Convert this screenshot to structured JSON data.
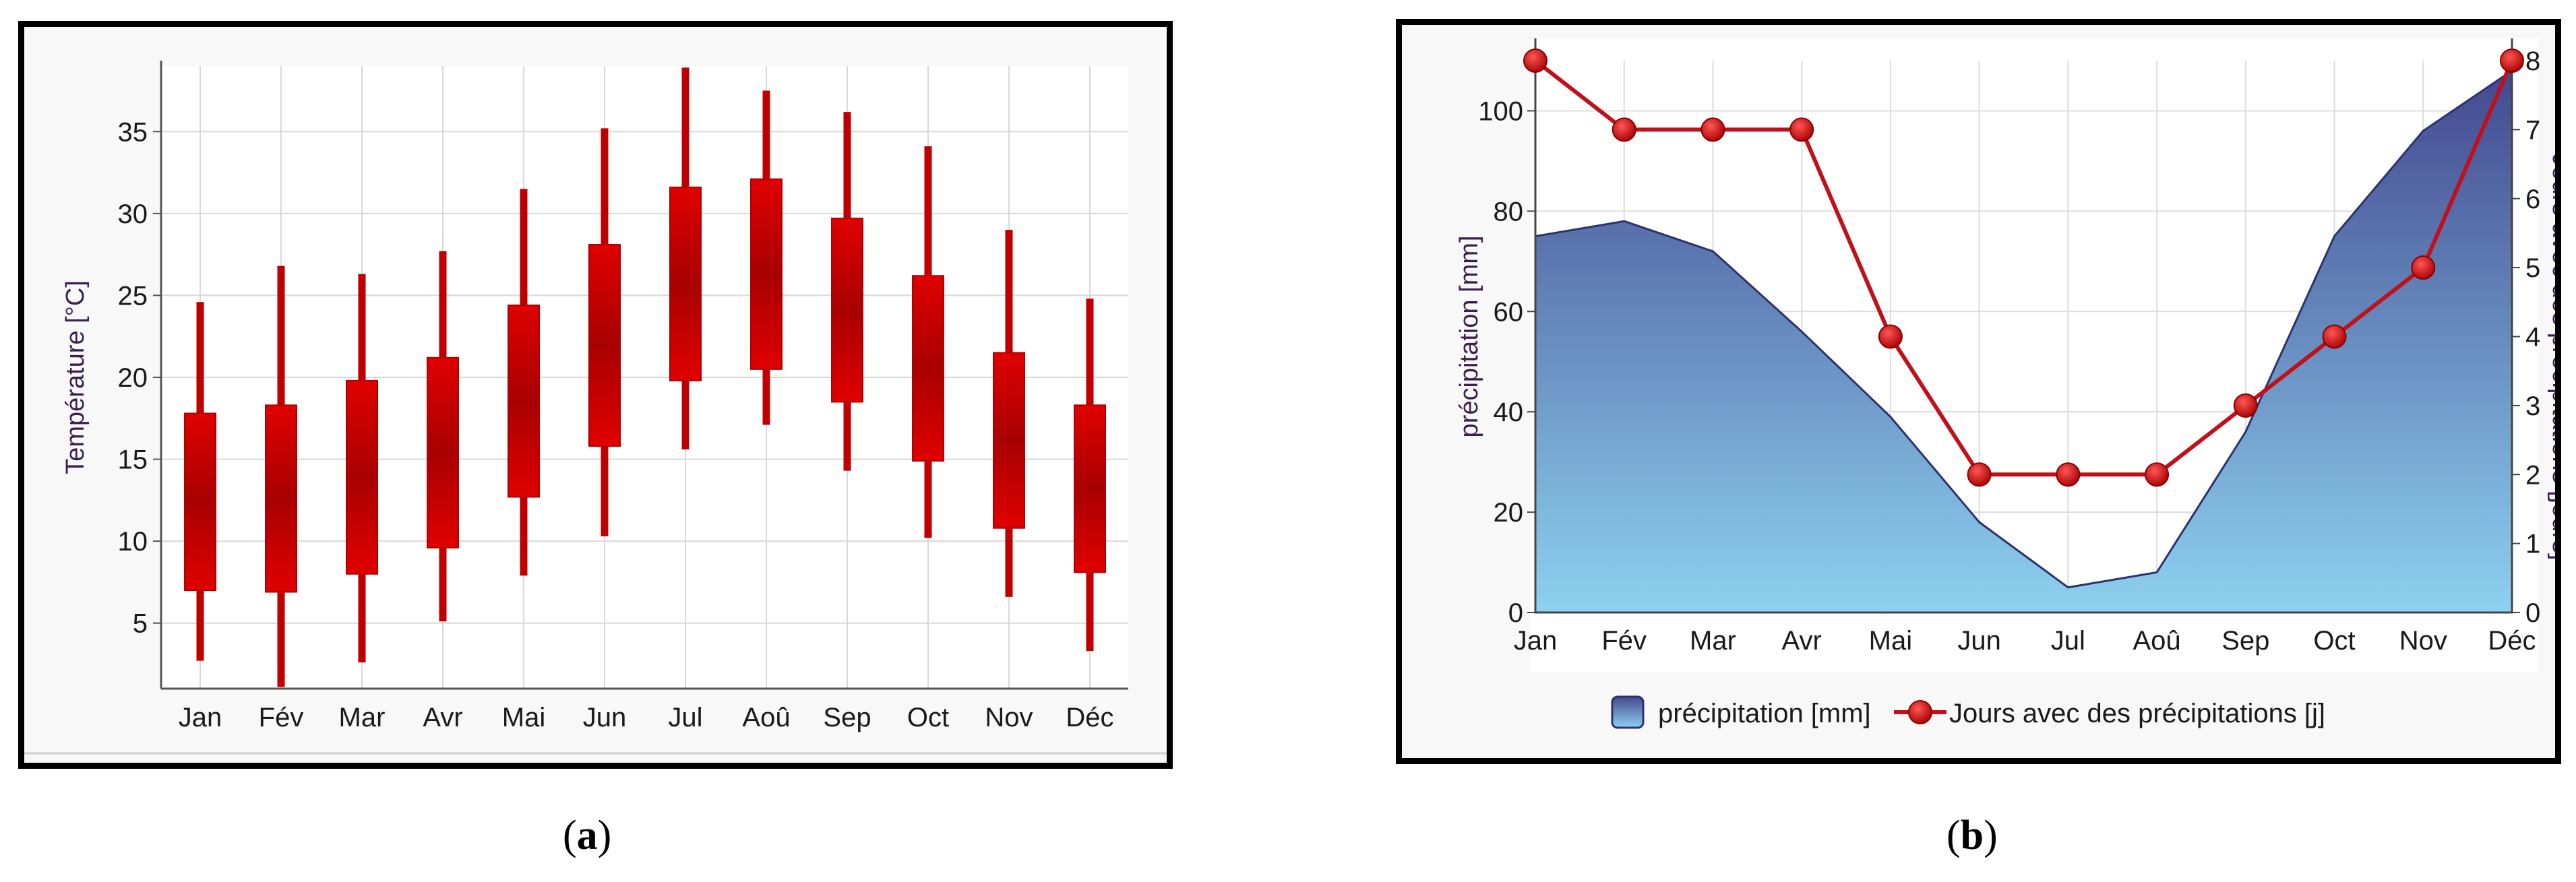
{
  "chart_data": [
    {
      "id": "a",
      "type": "candlestick",
      "title": "",
      "xlabel": "",
      "ylabel": "Température [°C]",
      "ylim": [
        1,
        39
      ],
      "yticks": [
        5,
        10,
        15,
        20,
        25,
        30,
        35
      ],
      "categories": [
        "Jan",
        "Fév",
        "Mar",
        "Avr",
        "Mai",
        "Jun",
        "Jul",
        "Aoû",
        "Sep",
        "Oct",
        "Nov",
        "Déc"
      ],
      "high": [
        24.6,
        26.8,
        26.3,
        27.7,
        31.5,
        35.2,
        38.9,
        37.5,
        36.2,
        34.1,
        29.0,
        24.8
      ],
      "open": [
        17.8,
        18.3,
        19.8,
        21.2,
        24.4,
        28.1,
        31.6,
        32.1,
        29.7,
        26.2,
        21.5,
        18.3
      ],
      "close": [
        7.0,
        6.9,
        8.0,
        9.6,
        12.7,
        15.8,
        19.8,
        20.5,
        18.5,
        14.9,
        10.8,
        8.1
      ],
      "low": [
        2.7,
        1.1,
        2.6,
        5.1,
        7.9,
        10.3,
        15.6,
        17.1,
        14.3,
        10.2,
        6.6,
        3.3
      ],
      "color": "#cc0000",
      "grid": true,
      "caption": "a"
    },
    {
      "id": "b",
      "type": "area+line",
      "title": "",
      "categories": [
        "Jan",
        "Fév",
        "Mar",
        "Avr",
        "Mai",
        "Jun",
        "Jul",
        "Aoû",
        "Sep",
        "Oct",
        "Nov",
        "Déc"
      ],
      "ylabel_left": "précipitation [mm]",
      "ylabel_right": "Jours avec des précipitations [jours]",
      "ylim_left": [
        0,
        110
      ],
      "yticks_left": [
        0,
        20,
        40,
        60,
        80,
        100
      ],
      "ylim_right": [
        0,
        8
      ],
      "yticks_right": [
        0,
        1,
        2,
        3,
        4,
        5,
        6,
        7,
        8
      ],
      "series": [
        {
          "name": "précipitation [mm]",
          "type": "area",
          "axis": "left",
          "values": [
            75,
            78,
            72,
            56,
            39,
            18,
            5,
            8,
            36,
            75,
            96,
            108
          ],
          "color_top": "#43498f",
          "color_bottom": "#8dd1f0"
        },
        {
          "name": "Jours avec des précipitations [j]",
          "type": "line",
          "axis": "right",
          "values": [
            8,
            7,
            7,
            7,
            4,
            2,
            2,
            2,
            3,
            4,
            5,
            8
          ],
          "color": "#c0101a"
        }
      ],
      "legend": "bottom",
      "grid": true,
      "caption": "b"
    }
  ]
}
